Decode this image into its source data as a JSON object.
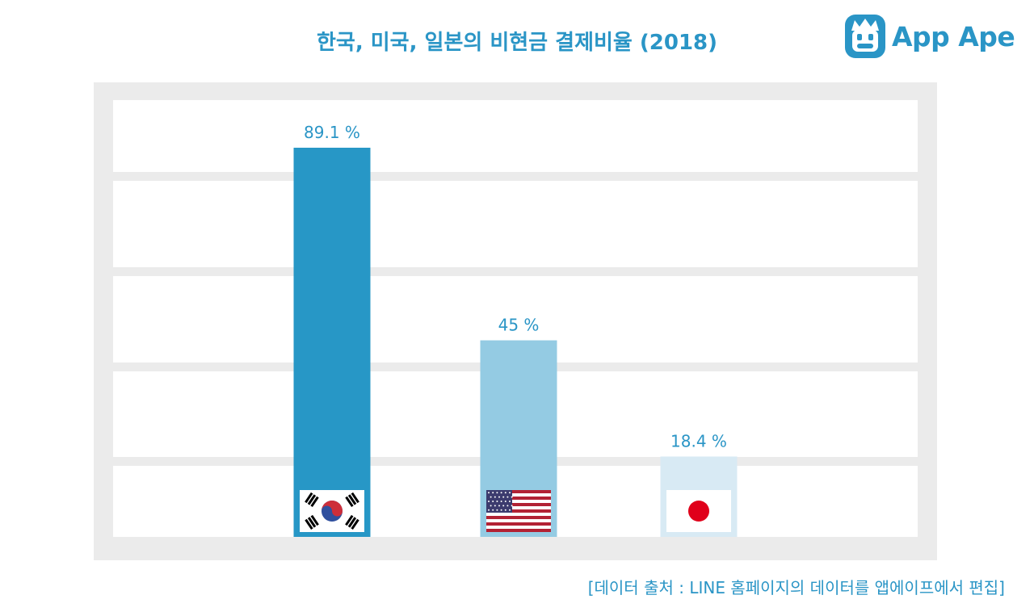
{
  "title": "한국, 미국, 일본의 비현금 결제비율 (2018)",
  "logo": {
    "text": "App Ape"
  },
  "source": "[데이터 출처 : LINE 홈페이지의 데이터를 앱에이프에서 편집]",
  "colors": {
    "accent": "#2a95c6",
    "korea": "#2797c6",
    "usa": "#94cbe3",
    "japan": "#d8eaf4",
    "frame": "#ebebeb"
  },
  "chart_data": {
    "type": "bar",
    "title": "한국, 미국, 일본의 비현금 결제비율 (2018)",
    "categories": [
      "Korea",
      "USA",
      "Japan"
    ],
    "values": [
      89.1,
      45,
      18.4
    ],
    "labels": [
      "89.1 %",
      "45 %",
      "18.4 %"
    ],
    "flags": [
      "korea-flag-icon",
      "usa-flag-icon",
      "japan-flag-icon"
    ],
    "xlabel": "",
    "ylabel": "",
    "ylim": [
      0,
      100
    ],
    "grid": true,
    "legend": "none"
  }
}
